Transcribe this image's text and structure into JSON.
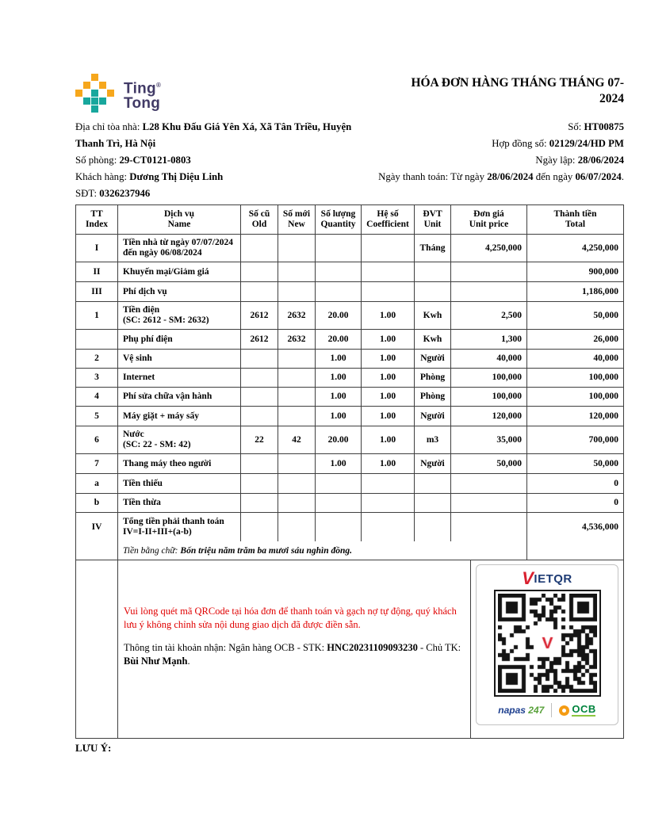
{
  "logo": {
    "line1": "Ting",
    "mark": "®",
    "line2": "Tong"
  },
  "title": "HÓA ĐƠN HÀNG THÁNG THÁNG 07-2024",
  "info_left": {
    "address_label": "Địa chỉ tòa nhà: ",
    "address_value": "L28 Khu Đấu Giá Yên Xá, Xã Tân Triều, Huyện Thanh Trì, Hà Nội",
    "room_label": "Số phòng: ",
    "room_value": "29-CT0121-0803",
    "customer_label": "Khách hàng: ",
    "customer_value": "Dương Thị Diệu Linh",
    "phone_label": "SĐT: ",
    "phone_value": "0326237946"
  },
  "info_right": {
    "number_label": "Số: ",
    "number_value": "HT00875",
    "contract_label": "Hợp đồng số: ",
    "contract_value": "02129/24/HD PM",
    "issue_label": "Ngày lập: ",
    "issue_value": "28/06/2024",
    "payment_label": "Ngày thanh toán: Từ ngày ",
    "payment_from": "28/06/2024",
    "payment_mid": " đến ngày ",
    "payment_to": "06/07/2024",
    "payment_end": "."
  },
  "table": {
    "headers": [
      {
        "vi": "TT",
        "en": "Index"
      },
      {
        "vi": "Dịch vụ",
        "en": "Name"
      },
      {
        "vi": "Số cũ",
        "en": "Old"
      },
      {
        "vi": "Số mới",
        "en": "New"
      },
      {
        "vi": "Số lượng",
        "en": "Quantity"
      },
      {
        "vi": "Hệ số",
        "en": "Coefficient"
      },
      {
        "vi": "ĐVT",
        "en": "Unit"
      },
      {
        "vi": "Đơn giá",
        "en": "Unit price"
      },
      {
        "vi": "Thành tiền",
        "en": "Total"
      }
    ],
    "rows": [
      {
        "tt": "I",
        "name": [
          "Tiền nhà từ ngày 07/07/2024",
          "đến ngày 06/08/2024"
        ],
        "old": "",
        "new": "",
        "qty": "",
        "coef": "",
        "unit": "Tháng",
        "price": "4,250,000",
        "total": "4,250,000"
      },
      {
        "tt": "II",
        "name": [
          "Khuyến mại/Giảm giá"
        ],
        "old": "",
        "new": "",
        "qty": "",
        "coef": "",
        "unit": "",
        "price": "",
        "total": "900,000"
      },
      {
        "tt": "III",
        "name": [
          "Phí dịch vụ"
        ],
        "old": "",
        "new": "",
        "qty": "",
        "coef": "",
        "unit": "",
        "price": "",
        "total": "1,186,000"
      },
      {
        "tt": "1",
        "name": [
          "Tiền điện",
          "(SC: 2612 - SM: 2632)"
        ],
        "old": "2612",
        "new": "2632",
        "qty": "20.00",
        "coef": "1.00",
        "unit": "Kwh",
        "price": "2,500",
        "total": "50,000"
      },
      {
        "tt": "",
        "name": [
          "Phụ phí điện"
        ],
        "old": "2612",
        "new": "2632",
        "qty": "20.00",
        "coef": "1.00",
        "unit": "Kwh",
        "price": "1,300",
        "total": "26,000"
      },
      {
        "tt": "2",
        "name": [
          "Vệ sinh"
        ],
        "old": "",
        "new": "",
        "qty": "1.00",
        "coef": "1.00",
        "unit": "Người",
        "price": "40,000",
        "total": "40,000"
      },
      {
        "tt": "3",
        "name": [
          "Internet"
        ],
        "old": "",
        "new": "",
        "qty": "1.00",
        "coef": "1.00",
        "unit": "Phòng",
        "price": "100,000",
        "total": "100,000"
      },
      {
        "tt": "4",
        "name": [
          "Phí sửa chữa vận hành"
        ],
        "old": "",
        "new": "",
        "qty": "1.00",
        "coef": "1.00",
        "unit": "Phòng",
        "price": "100,000",
        "total": "100,000"
      },
      {
        "tt": "5",
        "name": [
          "Máy giặt + máy sấy"
        ],
        "old": "",
        "new": "",
        "qty": "1.00",
        "coef": "1.00",
        "unit": "Người",
        "price": "120,000",
        "total": "120,000"
      },
      {
        "tt": "6",
        "name": [
          "Nước",
          "(SC: 22 - SM: 42)"
        ],
        "old": "22",
        "new": "42",
        "qty": "20.00",
        "coef": "1.00",
        "unit": "m3",
        "price": "35,000",
        "total": "700,000"
      },
      {
        "tt": "7",
        "name": [
          "Thang máy theo người"
        ],
        "old": "",
        "new": "",
        "qty": "1.00",
        "coef": "1.00",
        "unit": "Người",
        "price": "50,000",
        "total": "50,000"
      },
      {
        "tt": "a",
        "name": [
          "Tiền thiếu"
        ],
        "old": "",
        "new": "",
        "qty": "",
        "coef": "",
        "unit": "",
        "price": "",
        "total": "0"
      },
      {
        "tt": "b",
        "name": [
          "Tiền thừa"
        ],
        "old": "",
        "new": "",
        "qty": "",
        "coef": "",
        "unit": "",
        "price": "",
        "total": "0"
      },
      {
        "tt": "IV",
        "name": [
          "Tổng tiền phải thanh toán",
          "IV=I-II+III+(a-b)"
        ],
        "old": "",
        "new": "",
        "qty": "",
        "coef": "",
        "unit": "",
        "price": "",
        "total": "4,536,000"
      }
    ],
    "amount_words_label": "Tiền bằng chữ: ",
    "amount_words": "Bốn triệu năm trăm ba mươi sáu nghìn đồng."
  },
  "qr_section": {
    "note": "Vui lòng quét mã QRCode tại hóa đơn để thanh toán và gạch nợ tự động, quý khách lưu ý không chỉnh sửa nội dung giao dịch đã được điền sẵn.",
    "account_prefix": "Thông tin tài khoản nhận: Ngân hàng OCB - STK: ",
    "account_number": "HNC20231109093230",
    "account_mid": " - Chủ TK: ",
    "account_holder": "Bùi Như Mạnh",
    "account_end": ".",
    "vietqr_v": "V",
    "vietqr_rest": "IETQR",
    "napas_word": "napas",
    "napas_num": "247",
    "ocb_label": "OCB"
  },
  "footer": {
    "note_label": "LƯU Ý:"
  },
  "colors": {
    "logo_yellow": "#f6a71c",
    "logo_teal": "#18a79d",
    "logo_text_navy": "#413a66",
    "note_red": "#e00000",
    "vietqr_red": "#d91f2e",
    "vietqr_navy": "#1d3a73",
    "napas_blue": "#1d3f8f",
    "napas_green": "#5aa23c",
    "ocb_orange": "#f49b13",
    "ocb_green": "#00843d",
    "table_border": "#3f3f3f"
  }
}
